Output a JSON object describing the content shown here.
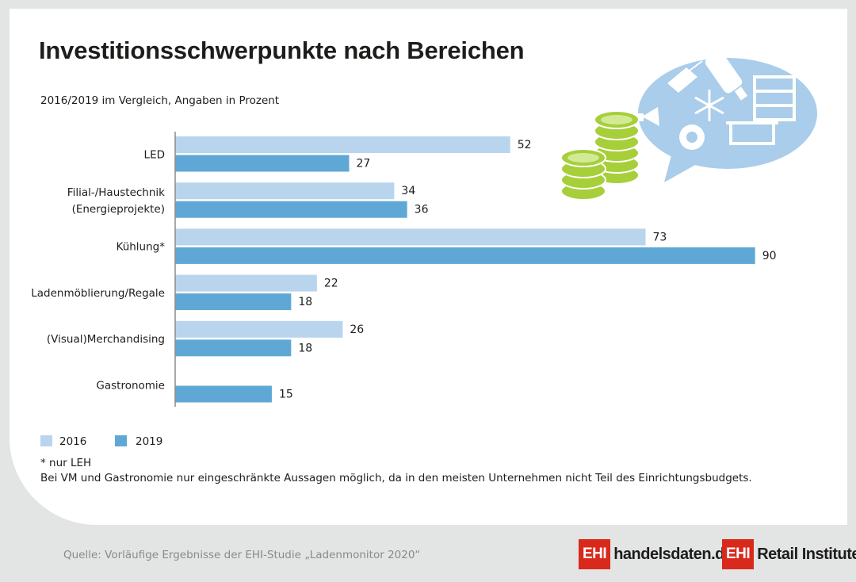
{
  "title": "Investitionsschwerpunkte nach Bereichen",
  "subtitle": "2016/2019 im Vergleich, Angaben in Prozent",
  "colors": {
    "series_2016": "#b9d5ee",
    "series_2019": "#5fa8d6",
    "axis": "#8c8c8c"
  },
  "chart_data": {
    "type": "bar",
    "orientation": "horizontal",
    "categories": [
      "LED",
      "Filial-/Haustechnik (Energieprojekte)",
      "Kühlung*",
      "Ladenmöblierung/Regale",
      "(Visual)Merchandising",
      "Gastronomie"
    ],
    "series": [
      {
        "name": "2016",
        "values": [
          52,
          34,
          73,
          22,
          26,
          null
        ]
      },
      {
        "name": "2019",
        "values": [
          27,
          36,
          90,
          18,
          18,
          15
        ]
      }
    ],
    "xlim": [
      0,
      90
    ],
    "legend_position": "bottom-left",
    "grid": false
  },
  "legend": {
    "item_2016": "2016",
    "item_2019": "2019"
  },
  "footnotes": {
    "note1": "* nur LEH",
    "note2": "Bei VM und Gastronomie nur eingeschränkte Aussagen möglich, da in den meisten Unternehmen nicht Teil des Einrichtungsbudgets."
  },
  "source": "Quelle: Vorläufige Ergebnisse der EHI-Studie „Ladenmonitor 2020“",
  "logos": {
    "logo1_box": "EHI",
    "logo1_text": "handelsdaten.de",
    "logo2_box": "EHI",
    "logo2_text": "Retail Institute",
    "logo2_reg": "®"
  },
  "illustration_icons": [
    "coins-icon",
    "price-tag-icon",
    "led-bulb-icon",
    "shelf-icon",
    "megaphone-icon",
    "snowflake-icon",
    "gear-icon",
    "counter-icon"
  ]
}
